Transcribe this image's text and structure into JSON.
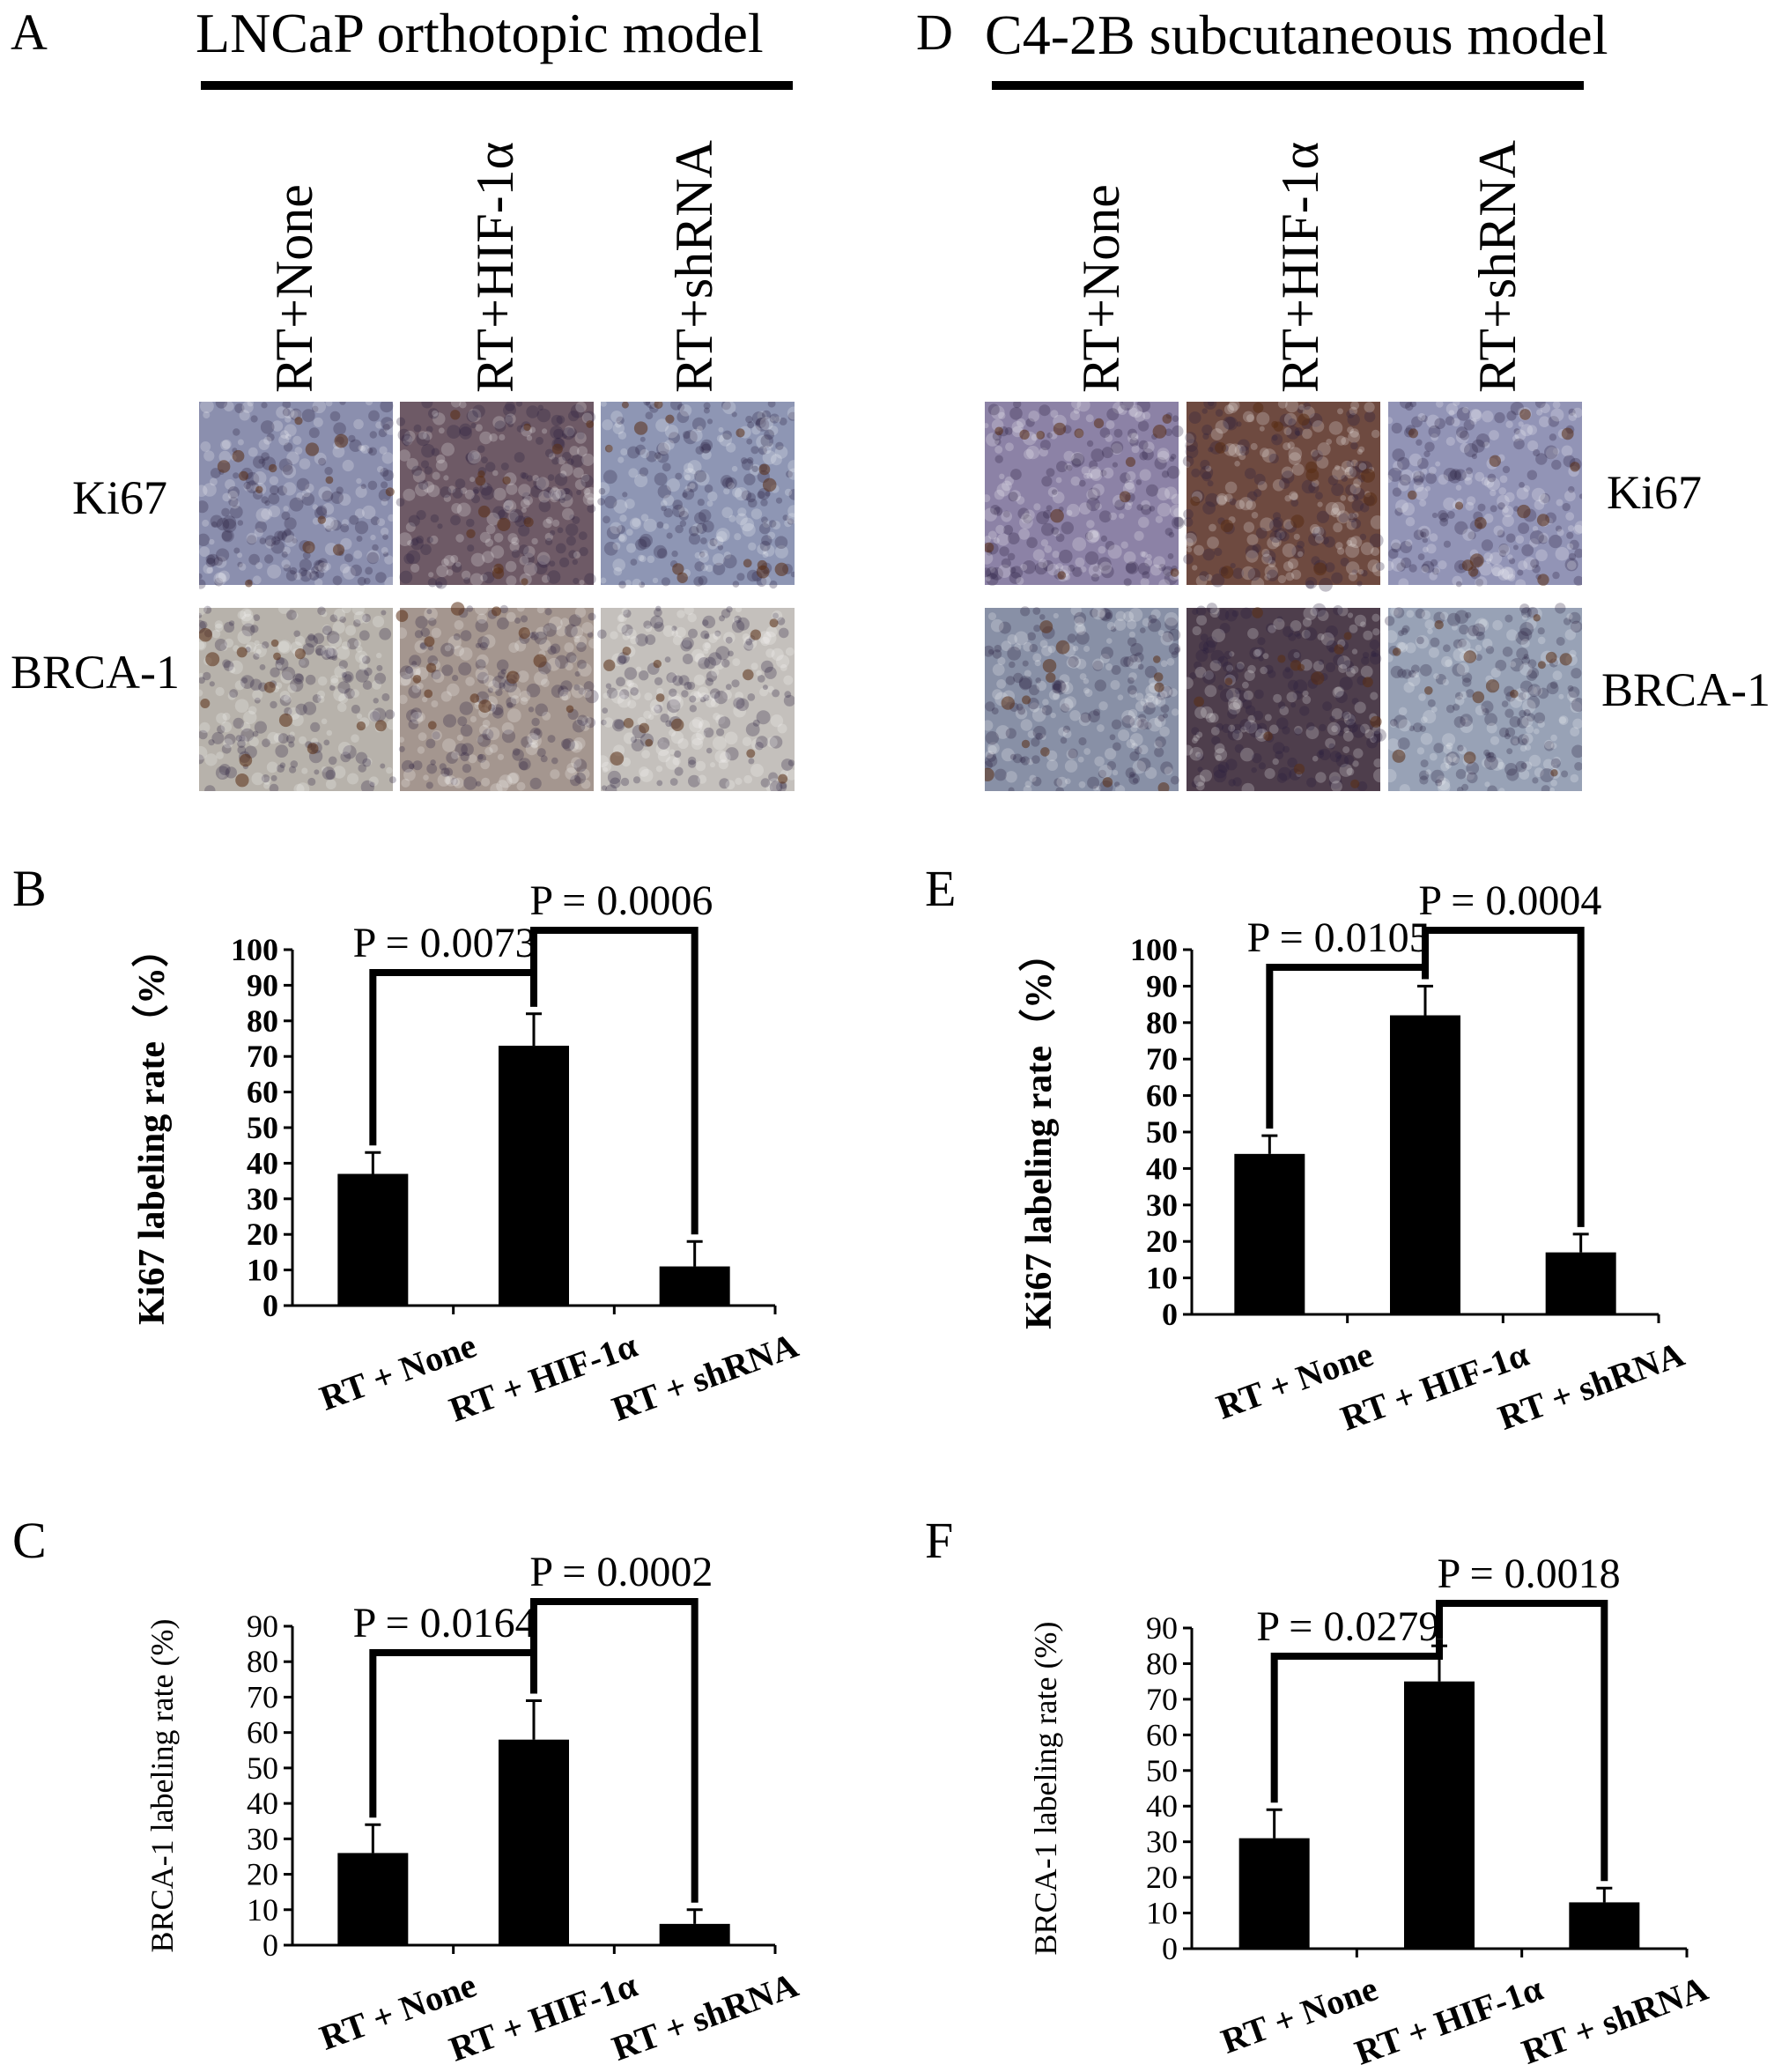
{
  "figure": {
    "left": {
      "model_title": "LNCaP orthotopic model",
      "panel_images": "A",
      "columns": [
        "RT+None",
        "RT+HIF-1α",
        "RT+shRNA"
      ],
      "rows": [
        "Ki67",
        "BRCA-1"
      ],
      "stain_colors": {
        "Ki67": [
          "#8b8fae",
          "#6e5a66",
          "#8e96b4"
        ],
        "BRCA-1": [
          "#b7b2ab",
          "#a4968f",
          "#c4c0bc"
        ]
      }
    },
    "right": {
      "model_title": "C4-2B subcutaneous model",
      "panel_images": "D",
      "columns": [
        "RT+None",
        "RT+HIF-1α",
        "RT+shRNA"
      ],
      "rows": [
        "Ki67",
        "BRCA-1"
      ],
      "stain_colors": {
        "Ki67": [
          "#8c82a6",
          "#6e4a40",
          "#9294b6"
        ],
        "BRCA-1": [
          "#8890a6",
          "#4e3e4c",
          "#98a2b6"
        ]
      }
    }
  },
  "chart_data": [
    {
      "panel": "B",
      "type": "bar",
      "bold": true,
      "ylabel": "Ki67 labeling rate（%）",
      "categories": [
        "RT + None",
        "RT + HIF-1α",
        "RT + shRNA"
      ],
      "values": [
        37,
        73,
        11
      ],
      "errors": [
        6,
        9,
        7
      ],
      "ylim": [
        0,
        100
      ],
      "yticks": [
        0,
        10,
        20,
        30,
        40,
        50,
        60,
        70,
        80,
        90,
        100
      ],
      "comparisons": [
        {
          "from": 0,
          "to": 1,
          "label": "P = 0.0073"
        },
        {
          "from": 1,
          "to": 2,
          "label": "P = 0.0006"
        }
      ]
    },
    {
      "panel": "C",
      "type": "bar",
      "bold": false,
      "ylabel": "BRCA-1 labeling rate (%)",
      "categories": [
        "RT + None",
        "RT + HIF-1α",
        "RT + shRNA"
      ],
      "values": [
        26,
        58,
        6
      ],
      "errors": [
        8,
        11,
        4
      ],
      "ylim": [
        0,
        90
      ],
      "yticks": [
        0,
        10,
        20,
        30,
        40,
        50,
        60,
        70,
        80,
        90
      ],
      "comparisons": [
        {
          "from": 0,
          "to": 1,
          "label": "P = 0.0164"
        },
        {
          "from": 1,
          "to": 2,
          "label": "P = 0.0002"
        }
      ]
    },
    {
      "panel": "E",
      "type": "bar",
      "bold": true,
      "ylabel": "Ki67 labeling rate（%）",
      "categories": [
        "RT + None",
        "RT + HIF-1α",
        "RT + shRNA"
      ],
      "values": [
        44,
        82,
        17
      ],
      "errors": [
        5,
        8,
        5
      ],
      "ylim": [
        0,
        100
      ],
      "yticks": [
        0,
        10,
        20,
        30,
        40,
        50,
        60,
        70,
        80,
        90,
        100
      ],
      "comparisons": [
        {
          "from": 0,
          "to": 1,
          "label": "P = 0.0105"
        },
        {
          "from": 1,
          "to": 2,
          "label": "P = 0.0004"
        }
      ]
    },
    {
      "panel": "F",
      "type": "bar",
      "bold": false,
      "ylabel": "BRCA-1 labeling rate (%)",
      "categories": [
        "RT + None",
        "RT + HIF-1α",
        "RT + shRNA"
      ],
      "values": [
        31,
        75,
        13
      ],
      "errors": [
        8,
        10,
        4
      ],
      "ylim": [
        0,
        90
      ],
      "yticks": [
        0,
        10,
        20,
        30,
        40,
        50,
        60,
        70,
        80,
        90
      ],
      "comparisons": [
        {
          "from": 0,
          "to": 1,
          "label": "P = 0.0279"
        },
        {
          "from": 1,
          "to": 2,
          "label": "P = 0.0018"
        }
      ]
    }
  ]
}
